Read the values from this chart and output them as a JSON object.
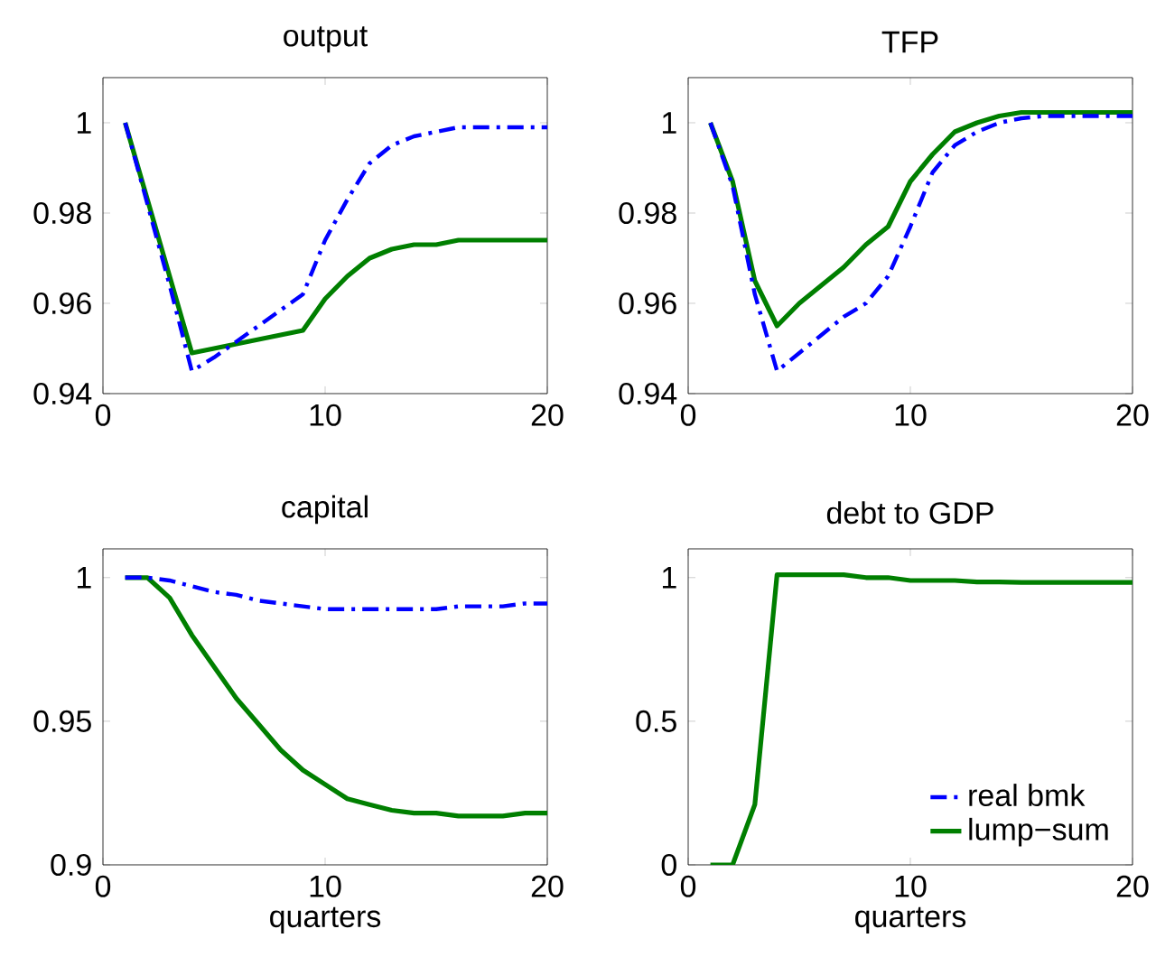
{
  "chart_data": [
    {
      "type": "line",
      "title": "output",
      "x": [
        1,
        2,
        3,
        4,
        5,
        6,
        7,
        8,
        9,
        10,
        11,
        12,
        13,
        14,
        15,
        16,
        17,
        18,
        19,
        20
      ],
      "xlim": [
        0,
        20
      ],
      "xticks": [
        0,
        10,
        20
      ],
      "ylim": [
        0.94,
        1.01
      ],
      "yticks": [
        0.94,
        0.96,
        0.98,
        1
      ],
      "grid": false,
      "legend": false,
      "series": [
        {
          "color": "#0000ff",
          "line_style": "dashdot",
          "values": [
            1.0,
            0.982,
            0.964,
            0.945,
            0.948,
            0.9515,
            0.955,
            0.9585,
            0.962,
            0.974,
            0.983,
            0.991,
            0.995,
            0.997,
            0.998,
            0.999,
            0.999,
            0.999,
            0.999,
            0.999
          ]
        },
        {
          "color": "#007f00",
          "line_style": "solid",
          "values": [
            1.0,
            0.983,
            0.966,
            0.949,
            0.95,
            0.951,
            0.952,
            0.953,
            0.954,
            0.961,
            0.966,
            0.97,
            0.972,
            0.973,
            0.973,
            0.974,
            0.974,
            0.974,
            0.974,
            0.974
          ]
        }
      ]
    },
    {
      "type": "line",
      "title": "TFP",
      "x": [
        1,
        2,
        3,
        4,
        5,
        6,
        7,
        8,
        9,
        10,
        11,
        12,
        13,
        14,
        15,
        16,
        17,
        18,
        19,
        20
      ],
      "xlim": [
        0,
        20
      ],
      "xticks": [
        0,
        10,
        20
      ],
      "ylim": [
        0.94,
        1.01
      ],
      "yticks": [
        0.94,
        0.96,
        0.98,
        1
      ],
      "grid": false,
      "legend": false,
      "series": [
        {
          "color": "#0000ff",
          "line_style": "dashdot",
          "values": [
            1.0,
            0.986,
            0.962,
            0.945,
            0.949,
            0.953,
            0.957,
            0.96,
            0.966,
            0.977,
            0.989,
            0.995,
            0.998,
            1.0,
            1.001,
            1.0015,
            1.0015,
            1.0015,
            1.0015,
            1.0015
          ]
        },
        {
          "color": "#007f00",
          "line_style": "solid",
          "values": [
            1.0,
            0.987,
            0.965,
            0.955,
            0.96,
            0.964,
            0.968,
            0.973,
            0.977,
            0.987,
            0.993,
            0.998,
            1.0,
            1.0015,
            1.0023,
            1.0023,
            1.0023,
            1.0023,
            1.0023,
            1.0023
          ]
        }
      ]
    },
    {
      "type": "line",
      "title": "capital",
      "xlabel": "quarters",
      "x": [
        1,
        2,
        3,
        4,
        5,
        6,
        7,
        8,
        9,
        10,
        11,
        12,
        13,
        14,
        15,
        16,
        17,
        18,
        19,
        20
      ],
      "xlim": [
        0,
        20
      ],
      "xticks": [
        0,
        10,
        20
      ],
      "ylim": [
        0.9,
        1.01
      ],
      "yticks": [
        0.9,
        0.95,
        1
      ],
      "grid": false,
      "legend": false,
      "series": [
        {
          "color": "#0000ff",
          "line_style": "dashdot",
          "values": [
            1.0,
            1.0,
            0.999,
            0.997,
            0.995,
            0.994,
            0.992,
            0.991,
            0.99,
            0.989,
            0.989,
            0.989,
            0.989,
            0.989,
            0.989,
            0.99,
            0.99,
            0.99,
            0.991,
            0.991
          ]
        },
        {
          "color": "#007f00",
          "line_style": "solid",
          "values": [
            1.0,
            1.0,
            0.993,
            0.98,
            0.969,
            0.958,
            0.949,
            0.94,
            0.933,
            0.928,
            0.923,
            0.921,
            0.919,
            0.918,
            0.918,
            0.917,
            0.917,
            0.917,
            0.918,
            0.918
          ]
        }
      ]
    },
    {
      "type": "line",
      "title": "debt to GDP",
      "xlabel": "quarters",
      "x": [
        1,
        2,
        3,
        4,
        5,
        6,
        7,
        8,
        9,
        10,
        11,
        12,
        13,
        14,
        15,
        16,
        17,
        18,
        19,
        20
      ],
      "xlim": [
        0,
        20
      ],
      "xticks": [
        0,
        10,
        20
      ],
      "ylim": [
        0,
        1.1
      ],
      "yticks": [
        0,
        0.5,
        1
      ],
      "grid": false,
      "legend": "bottom right",
      "series": [
        {
          "name": "real bmk",
          "color": "#0000ff",
          "line_style": "dashdot",
          "values": [
            null,
            null,
            null,
            null,
            null,
            null,
            null,
            null,
            null,
            null,
            null,
            null,
            null,
            null,
            null,
            null,
            null,
            null,
            null,
            null
          ]
        },
        {
          "name": "lump−sum",
          "color": "#007f00",
          "line_style": "solid",
          "values": [
            0,
            0,
            0.21,
            1.01,
            1.01,
            1.01,
            1.01,
            1.0,
            1.0,
            0.99,
            0.99,
            0.99,
            0.985,
            0.985,
            0.983,
            0.983,
            0.983,
            0.983,
            0.983,
            0.983
          ]
        }
      ]
    }
  ]
}
